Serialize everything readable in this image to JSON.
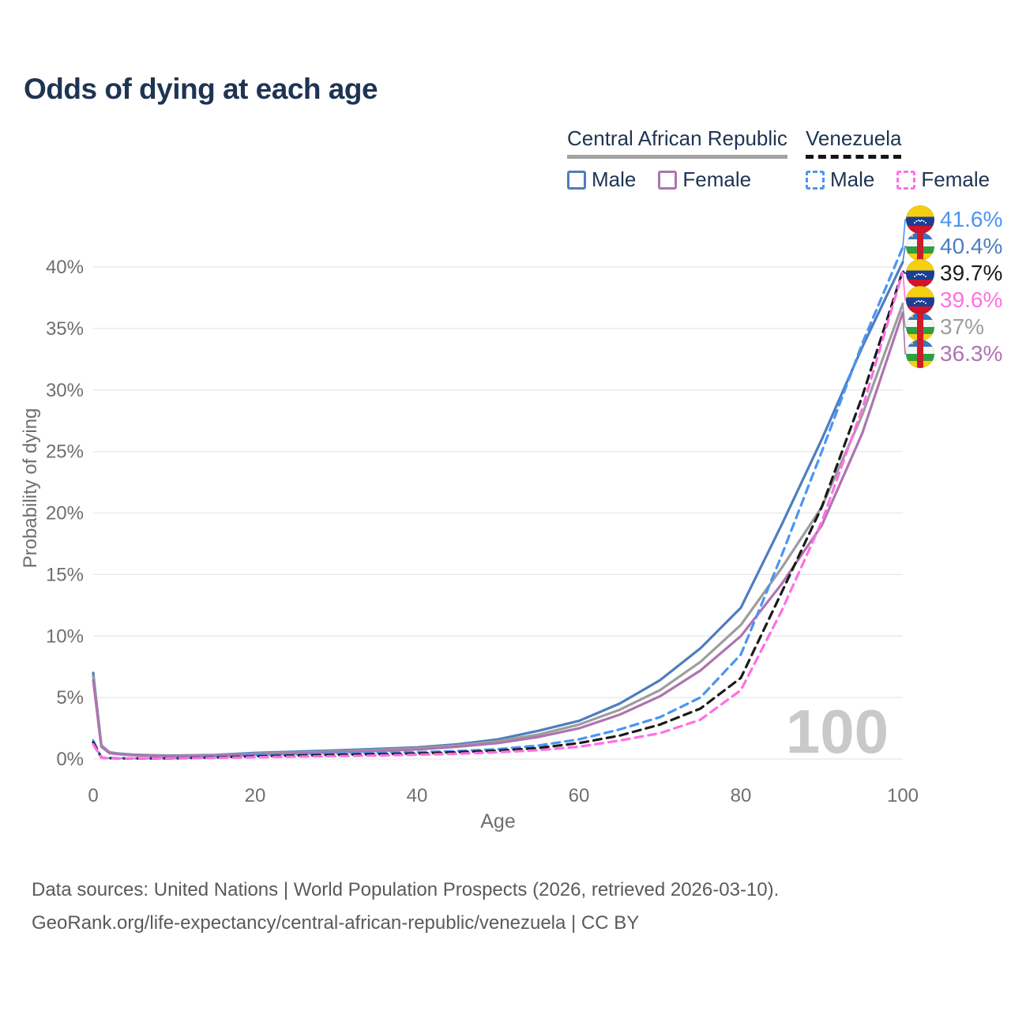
{
  "title": "Odds of dying at each age",
  "legend": {
    "groups": [
      {
        "label": "Central African Republic",
        "line_style": "solid",
        "underline_color": "#a2a2a2",
        "items": [
          {
            "label": "Male",
            "color": "#4e7dc0"
          },
          {
            "label": "Female",
            "color": "#ae74b0"
          }
        ]
      },
      {
        "label": "Venezuela",
        "line_style": "dashed",
        "underline_color": "#141414",
        "items": [
          {
            "label": "Male",
            "color": "#4a95f2"
          },
          {
            "label": "Female",
            "color": "#ff6fe5"
          }
        ]
      }
    ]
  },
  "watermark": "100",
  "end_labels": [
    {
      "series_id": "ven-male",
      "value": "41.6%",
      "color": "#4a95f2",
      "flag": "venezuela"
    },
    {
      "series_id": "car-male",
      "value": "40.4%",
      "color": "#4e7dc0",
      "flag": "central-african-republic"
    },
    {
      "series_id": "ven-both",
      "value": "39.7%",
      "color": "#1b1b1b",
      "flag": "venezuela"
    },
    {
      "series_id": "ven-female",
      "value": "39.6%",
      "color": "#ff6fe5",
      "flag": "venezuela"
    },
    {
      "series_id": "car-both",
      "value": "37%",
      "color": "#9d9d9d",
      "flag": "central-african-republic"
    },
    {
      "series_id": "car-female",
      "value": "36.3%",
      "color": "#ae74b0",
      "flag": "central-african-republic"
    }
  ],
  "footer": {
    "line1": "Data sources: United Nations | World Population Prospects (2026, retrieved 2026-03-10).",
    "line2": "GeoRank.org/life-expectancy/central-african-republic/venezuela | CC BY"
  },
  "chart_data": {
    "type": "line",
    "title": "Odds of dying at each age",
    "xlabel": "Age",
    "ylabel": "Probability of dying",
    "xlim": [
      0,
      100
    ],
    "ylim": [
      0,
      44
    ],
    "x_ticks": [
      0,
      20,
      40,
      60,
      80,
      100
    ],
    "y_tick_labels": [
      "0%",
      "5%",
      "10%",
      "15%",
      "20%",
      "25%",
      "30%",
      "35%",
      "40%"
    ],
    "y_tick_values": [
      0,
      5,
      10,
      15,
      20,
      25,
      30,
      35,
      40
    ],
    "grid": "horizontal",
    "legend_position": "top-right",
    "x": [
      0,
      1,
      2,
      3,
      5,
      8,
      10,
      15,
      20,
      25,
      30,
      35,
      40,
      45,
      50,
      55,
      60,
      65,
      70,
      75,
      80,
      85,
      90,
      95,
      100
    ],
    "series": [
      {
        "id": "car-male",
        "name": "Central African Republic Male",
        "line": "solid",
        "color": "#4e7dc0",
        "end_label": "40.4%",
        "values": [
          7.0,
          1.1,
          0.55,
          0.45,
          0.35,
          0.3,
          0.28,
          0.33,
          0.5,
          0.6,
          0.7,
          0.82,
          0.95,
          1.2,
          1.6,
          2.3,
          3.1,
          4.5,
          6.4,
          9.0,
          12.3,
          19.0,
          26.0,
          33.5,
          40.4
        ]
      },
      {
        "id": "car-both",
        "name": "Central African Republic Both sexes",
        "line": "solid",
        "color": "#9d9d9d",
        "end_label": "37%",
        "values": [
          6.7,
          1.05,
          0.52,
          0.42,
          0.33,
          0.28,
          0.26,
          0.3,
          0.44,
          0.52,
          0.62,
          0.73,
          0.87,
          1.1,
          1.45,
          2.0,
          2.8,
          4.0,
          5.6,
          7.9,
          10.9,
          15.5,
          20.5,
          28.0,
          37.0
        ]
      },
      {
        "id": "car-female",
        "name": "Central African Republic Female",
        "line": "solid",
        "color": "#ae74b0",
        "end_label": "36.3%",
        "values": [
          6.4,
          1.0,
          0.48,
          0.4,
          0.31,
          0.26,
          0.24,
          0.27,
          0.38,
          0.45,
          0.55,
          0.65,
          0.78,
          1.0,
          1.3,
          1.8,
          2.5,
          3.6,
          5.1,
          7.2,
          10.0,
          14.2,
          19.0,
          26.5,
          36.3
        ]
      },
      {
        "id": "ven-male",
        "name": "Venezuela Male",
        "line": "dashed",
        "color": "#4a95f2",
        "end_label": "41.6%",
        "values": [
          1.5,
          0.12,
          0.08,
          0.07,
          0.06,
          0.06,
          0.06,
          0.15,
          0.3,
          0.38,
          0.45,
          0.5,
          0.55,
          0.65,
          0.8,
          1.1,
          1.6,
          2.4,
          3.4,
          5.0,
          8.5,
          16.5,
          25.0,
          33.8,
          41.6
        ]
      },
      {
        "id": "ven-both",
        "name": "Venezuela Both sexes",
        "line": "dashed",
        "color": "#1b1b1b",
        "end_label": "39.7%",
        "values": [
          1.35,
          0.11,
          0.07,
          0.06,
          0.055,
          0.055,
          0.055,
          0.12,
          0.22,
          0.28,
          0.34,
          0.4,
          0.45,
          0.55,
          0.68,
          0.9,
          1.3,
          1.9,
          2.8,
          4.1,
          6.6,
          13.5,
          20.5,
          29.5,
          39.7
        ]
      },
      {
        "id": "ven-female",
        "name": "Venezuela Female",
        "line": "dashed",
        "color": "#ff6fe5",
        "end_label": "39.6%",
        "values": [
          1.2,
          0.1,
          0.06,
          0.055,
          0.05,
          0.05,
          0.05,
          0.09,
          0.15,
          0.19,
          0.24,
          0.29,
          0.35,
          0.43,
          0.55,
          0.72,
          1.0,
          1.5,
          2.1,
          3.2,
          5.6,
          12.0,
          19.3,
          28.5,
          39.6
        ]
      }
    ]
  }
}
